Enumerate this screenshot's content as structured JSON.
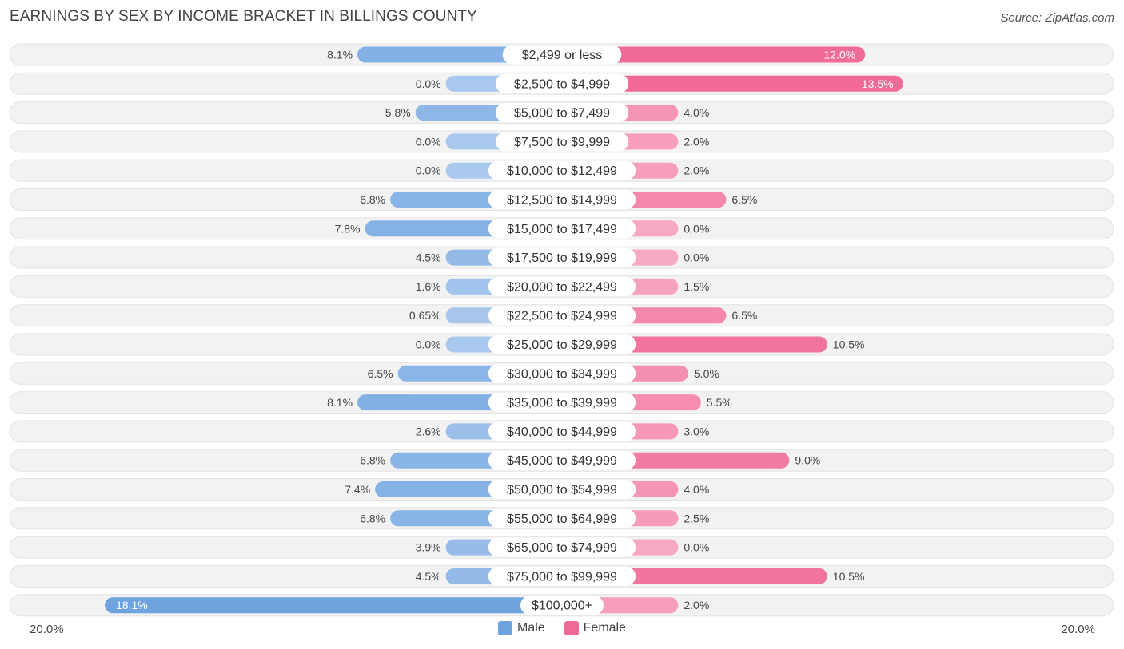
{
  "title": "EARNINGS BY SEX BY INCOME BRACKET IN BILLINGS COUNTY",
  "source": "Source: ZipAtlas.com",
  "colors": {
    "male": "#6fa3e0",
    "male_light": "#a9c8ed",
    "female": "#f06a95",
    "female_light": "#f7a8c2",
    "row_bg": "#f2f2f2"
  },
  "chart_data": {
    "type": "bar",
    "orientation": "horizontal-diverging",
    "title": "EARNINGS BY SEX BY INCOME BRACKET IN BILLINGS COUNTY",
    "categories": [
      "$2,499 or less",
      "$2,500 to $4,999",
      "$5,000 to $7,499",
      "$7,500 to $9,999",
      "$10,000 to $12,499",
      "$12,500 to $14,999",
      "$15,000 to $17,499",
      "$17,500 to $19,999",
      "$20,000 to $22,499",
      "$22,500 to $24,999",
      "$25,000 to $29,999",
      "$30,000 to $34,999",
      "$35,000 to $39,999",
      "$40,000 to $44,999",
      "$45,000 to $49,999",
      "$50,000 to $54,999",
      "$55,000 to $64,999",
      "$65,000 to $74,999",
      "$75,000 to $99,999",
      "$100,000+"
    ],
    "series": [
      {
        "name": "Male",
        "values": [
          8.1,
          0.0,
          5.8,
          0.0,
          0.0,
          6.8,
          7.8,
          4.5,
          1.6,
          0.65,
          0.0,
          6.5,
          8.1,
          2.6,
          6.8,
          7.4,
          6.8,
          3.9,
          4.5,
          18.1
        ],
        "labels": [
          "8.1%",
          "0.0%",
          "5.8%",
          "0.0%",
          "0.0%",
          "6.8%",
          "7.8%",
          "4.5%",
          "1.6%",
          "0.65%",
          "0.0%",
          "6.5%",
          "8.1%",
          "2.6%",
          "6.8%",
          "7.4%",
          "6.8%",
          "3.9%",
          "4.5%",
          "18.1%"
        ]
      },
      {
        "name": "Female",
        "values": [
          12.0,
          13.5,
          4.0,
          2.0,
          2.0,
          6.5,
          0.0,
          0.0,
          1.5,
          6.5,
          10.5,
          5.0,
          5.5,
          3.0,
          9.0,
          4.0,
          2.5,
          0.0,
          10.5,
          2.0
        ],
        "labels": [
          "12.0%",
          "13.5%",
          "4.0%",
          "2.0%",
          "2.0%",
          "6.5%",
          "0.0%",
          "0.0%",
          "1.5%",
          "6.5%",
          "10.5%",
          "5.0%",
          "5.5%",
          "3.0%",
          "9.0%",
          "4.0%",
          "2.5%",
          "0.0%",
          "10.5%",
          "2.0%"
        ]
      }
    ],
    "xlim": [
      0,
      20
    ],
    "axis_labels": {
      "left": "20.0%",
      "right": "20.0%"
    },
    "legend": [
      "Male",
      "Female"
    ],
    "legend_position": "bottom-center"
  }
}
